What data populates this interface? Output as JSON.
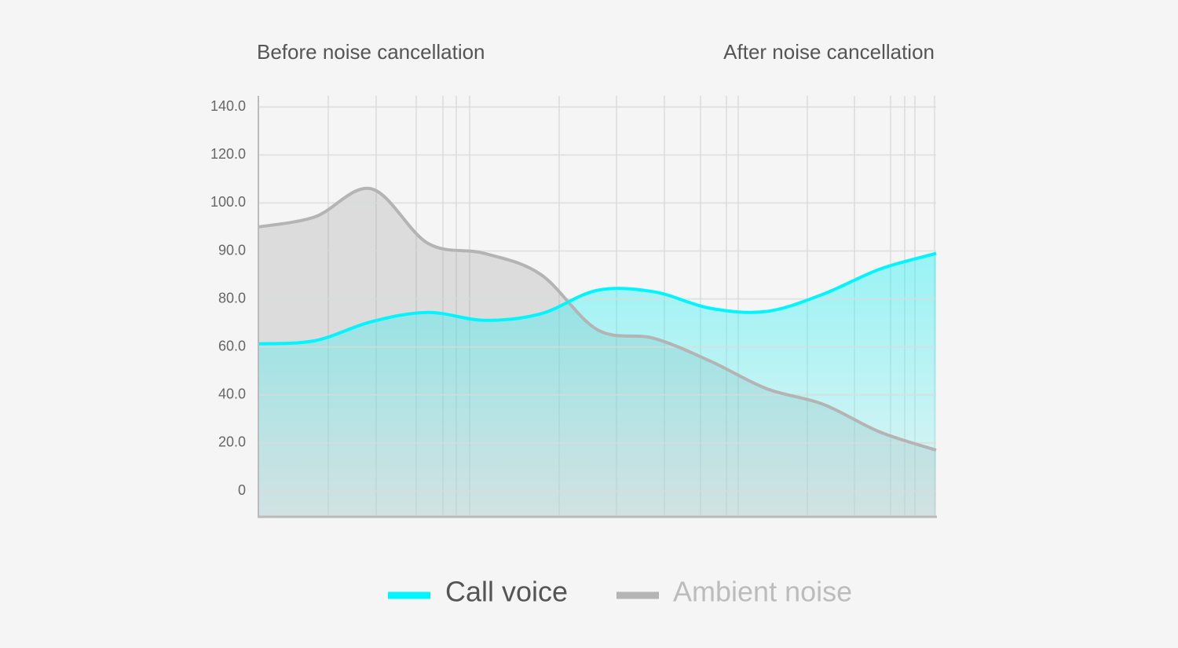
{
  "chart_data": {
    "type": "area",
    "annotations": [
      "Before noise cancellation",
      "After noise cancellation"
    ],
    "categories": [
      null,
      null,
      null,
      null,
      null,
      null,
      null,
      null,
      null,
      null,
      null,
      null,
      null
    ],
    "series": [
      {
        "name": "Ambient noise",
        "color": "#b4b4b4",
        "values": [
          95.0,
          97.1,
          105.9,
          91.6,
          89.5,
          85.1,
          67.2,
          63.6,
          54.1,
          42.6,
          36.1,
          24.6,
          17.0
        ]
      },
      {
        "name": "Call voice",
        "color": "#00f5ff",
        "values": [
          61.3,
          62.6,
          70.5,
          74.4,
          71.1,
          73.8,
          81.8,
          81.5,
          76.1,
          74.8,
          81.0,
          86.2,
          89.5
        ]
      }
    ],
    "ylim": [
      -11,
      145
    ],
    "yticks": [
      0,
      {
        "value": 20,
        "label": "20.0"
      },
      {
        "value": 40,
        "label": "40.0"
      },
      {
        "value": 60,
        "label": "60.0"
      },
      {
        "value": 80,
        "label": "80.0"
      },
      {
        "value": 90,
        "label": "90.0"
      },
      {
        "value": 100,
        "label": "100.0"
      },
      {
        "value": 120,
        "label": "120.0"
      },
      {
        "value": 140,
        "label": "140.0"
      }
    ],
    "grid": true
  }
}
